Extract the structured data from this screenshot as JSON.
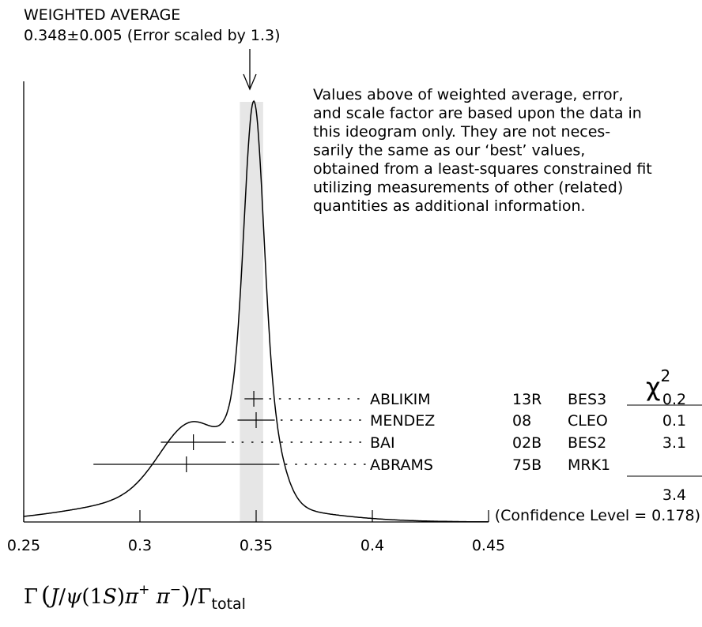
{
  "header": {
    "title": "WEIGHTED AVERAGE",
    "value": "0.348±0.005 (Error scaled by 1.3)"
  },
  "note": [
    "Values above of weighted average, error,",
    "and scale factor are based upon the data in",
    "this ideogram only.  They are not neces-",
    "sarily the same as our ‘best’ values,",
    "obtained from a least-squares constrained fit",
    "utilizing measurements of other (related)",
    "quantities as additional information."
  ],
  "chi_header": "χ",
  "chi_superscript": "2",
  "chi_total": "3.4",
  "confidence_level": "(Confidence Level = 0.178)",
  "chart_data": {
    "type": "scatter",
    "xlim": [
      0.25,
      0.45
    ],
    "x_ticks": [
      0.25,
      0.3,
      0.35,
      0.4,
      0.45
    ],
    "x_tick_labels": [
      "0.25",
      "0.3",
      "0.35",
      "0.4",
      "0.45"
    ],
    "xlabel": "Γ(J/ψ(1S)π⁺π⁻)/Γtotal",
    "weighted_average": {
      "value": 0.348,
      "error": 0.005
    },
    "measurements": [
      {
        "author": "ABLIKIM",
        "year": "13R",
        "experiment": "BES3",
        "chi2": "0.2",
        "value": 0.349,
        "error_low": 0.004,
        "error_high": 0.004
      },
      {
        "author": "MENDEZ",
        "year": "08",
        "experiment": "CLEO",
        "chi2": "0.1",
        "value": 0.35,
        "error_low": 0.008,
        "error_high": 0.008
      },
      {
        "author": "BAI",
        "year": "02B",
        "experiment": "BES2",
        "chi2": "3.1",
        "value": 0.323,
        "error_low": 0.014,
        "error_high": 0.014
      },
      {
        "author": "ABRAMS",
        "year": "75B",
        "experiment": "MRK1",
        "chi2": "",
        "value": 0.32,
        "error_low": 0.04,
        "error_high": 0.04
      }
    ]
  }
}
